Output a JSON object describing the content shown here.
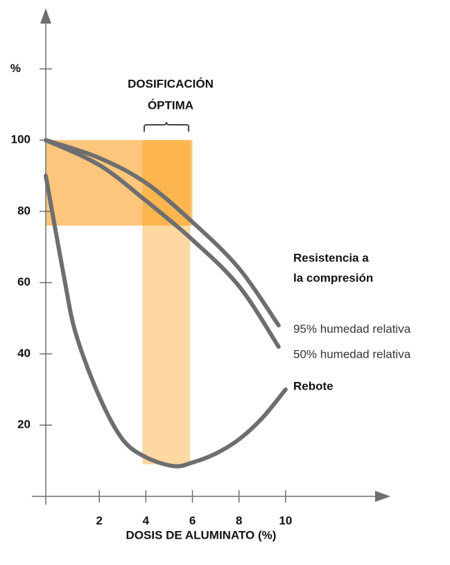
{
  "chart_data": {
    "type": "line",
    "xlabel": "DOSIS DE ALUMINATO (%)",
    "xlim": [
      -0.3,
      14.5
    ],
    "xticks": [
      2,
      4,
      6,
      8,
      10
    ],
    "ylim": [
      0,
      137
    ],
    "yticks": [
      20,
      40,
      60,
      80,
      100,
      {
        "value": 120,
        "label": "%"
      }
    ],
    "bands": [
      {
        "x": [
          -0.3,
          6
        ],
        "y": [
          76,
          100
        ],
        "color": "#fdc67c"
      },
      {
        "x": [
          3.85,
          5.9
        ],
        "y": [
          9,
          100
        ],
        "color": "#fed8a2"
      }
    ],
    "overlap_color": "#fcb54f",
    "annotations": [
      {
        "lines": [
          "DOSIFICACIÓN",
          "ÓPTIMA"
        ]
      },
      {
        "lines": [
          "Resistencia a",
          "la compresión"
        ]
      }
    ],
    "series": [
      {
        "name": "95% humedad relativa",
        "color": "#6d6e70",
        "x": [
          -0.3,
          2,
          4,
          6,
          8,
          9.7
        ],
        "values": [
          100,
          95,
          88,
          77,
          64,
          48
        ]
      },
      {
        "name": "50% humedad relativa",
        "color": "#6d6e70",
        "x": [
          -0.3,
          2,
          4,
          6,
          8,
          9.7
        ],
        "values": [
          100,
          93,
          83,
          72,
          59,
          42
        ]
      },
      {
        "name": "Rebote",
        "color": "#6d6e70",
        "x": [
          -0.3,
          0.5,
          1,
          2,
          3,
          4,
          5.2,
          6,
          7,
          8,
          9,
          10
        ],
        "values": [
          90,
          61,
          45.5,
          28,
          16,
          11,
          8.5,
          9.5,
          12,
          16,
          22,
          30
        ]
      }
    ]
  }
}
